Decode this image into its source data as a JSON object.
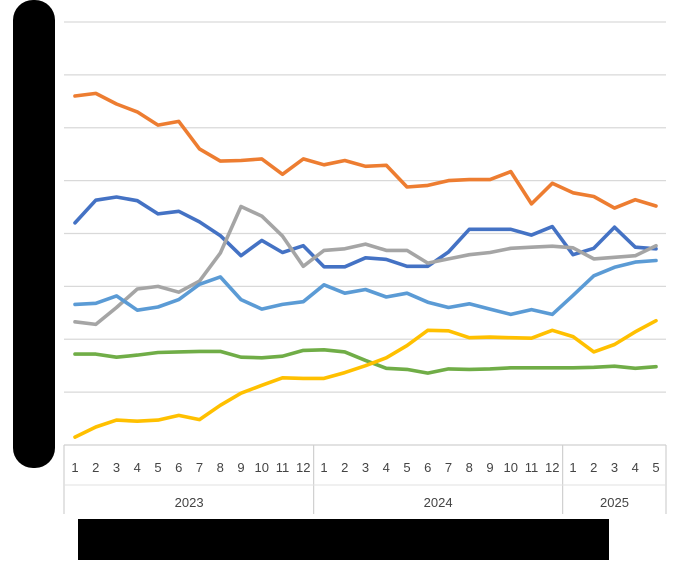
{
  "chart_data": {
    "type": "line",
    "title": "",
    "xlabel": "",
    "ylabel": "",
    "ylim": [
      0,
      8
    ],
    "grid": true,
    "legend": "none",
    "x": [
      "2023-1",
      "2023-2",
      "2023-3",
      "2023-4",
      "2023-5",
      "2023-6",
      "2023-7",
      "2023-8",
      "2023-9",
      "2023-10",
      "2023-11",
      "2023-12",
      "2024-1",
      "2024-2",
      "2024-3",
      "2024-4",
      "2024-5",
      "2024-6",
      "2024-7",
      "2024-8",
      "2024-9",
      "2024-10",
      "2024-11",
      "2024-12",
      "2025-1",
      "2025-2",
      "2025-3",
      "2025-4",
      "2025-5"
    ],
    "month_labels": [
      "1",
      "2",
      "3",
      "4",
      "5",
      "6",
      "7",
      "8",
      "9",
      "10",
      "11",
      "12",
      "1",
      "2",
      "3",
      "4",
      "5",
      "6",
      "7",
      "8",
      "9",
      "10",
      "11",
      "12",
      "1",
      "2",
      "3",
      "4",
      "5"
    ],
    "years": [
      {
        "label": "2023",
        "count": 12
      },
      {
        "label": "2024",
        "count": 12
      },
      {
        "label": "2025",
        "count": 5
      }
    ],
    "series": [
      {
        "color": "#ED7D31",
        "values": [
          6.6,
          6.65,
          6.45,
          6.3,
          6.05,
          6.12,
          5.6,
          5.37,
          5.38,
          5.41,
          5.12,
          5.41,
          5.3,
          5.38,
          5.27,
          5.29,
          4.88,
          4.91,
          5.0,
          5.02,
          5.02,
          5.17,
          4.56,
          4.95,
          4.77,
          4.7,
          4.48,
          4.64,
          4.52
        ]
      },
      {
        "color": "#4472C4",
        "values": [
          4.2,
          4.63,
          4.69,
          4.62,
          4.37,
          4.42,
          4.22,
          3.96,
          3.58,
          3.87,
          3.64,
          3.77,
          3.37,
          3.37,
          3.54,
          3.51,
          3.38,
          3.38,
          3.65,
          4.08,
          4.08,
          4.08,
          3.97,
          4.13,
          3.6,
          3.72,
          4.12,
          3.74,
          3.71
        ]
      },
      {
        "color": "#A5A5A5",
        "values": [
          2.33,
          2.28,
          2.6,
          2.95,
          3.0,
          2.89,
          3.1,
          3.63,
          4.51,
          4.33,
          3.95,
          3.38,
          3.68,
          3.71,
          3.8,
          3.68,
          3.68,
          3.44,
          3.52,
          3.6,
          3.64,
          3.72,
          3.74,
          3.76,
          3.73,
          3.52,
          3.55,
          3.58,
          3.77
        ]
      },
      {
        "color": "#5B9BD5",
        "values": [
          2.66,
          2.68,
          2.82,
          2.55,
          2.61,
          2.75,
          3.04,
          3.18,
          2.75,
          2.57,
          2.66,
          2.71,
          3.03,
          2.87,
          2.94,
          2.8,
          2.87,
          2.7,
          2.6,
          2.67,
          2.57,
          2.47,
          2.56,
          2.47,
          2.83,
          3.2,
          3.36,
          3.46,
          3.49
        ]
      },
      {
        "color": "#70AD47",
        "values": [
          1.72,
          1.72,
          1.66,
          1.7,
          1.75,
          1.76,
          1.77,
          1.77,
          1.66,
          1.65,
          1.68,
          1.79,
          1.8,
          1.76,
          1.6,
          1.45,
          1.43,
          1.36,
          1.44,
          1.43,
          1.44,
          1.46,
          1.46,
          1.46,
          1.46,
          1.47,
          1.49,
          1.45,
          1.48
        ]
      },
      {
        "color": "#FFC000",
        "values": [
          0.15,
          0.34,
          0.47,
          0.45,
          0.47,
          0.56,
          0.48,
          0.75,
          0.98,
          1.13,
          1.27,
          1.26,
          1.26,
          1.37,
          1.5,
          1.65,
          1.88,
          2.17,
          2.16,
          2.03,
          2.04,
          2.03,
          2.02,
          2.17,
          2.05,
          1.76,
          1.9,
          2.14,
          2.35
        ]
      }
    ]
  }
}
